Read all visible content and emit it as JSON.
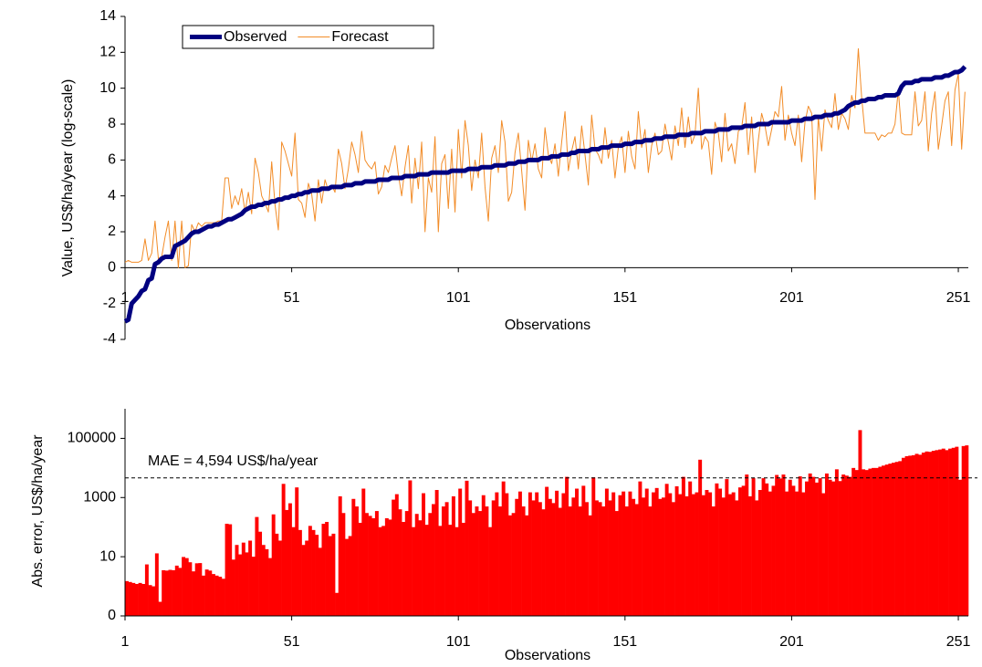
{
  "chart_data": [
    {
      "type": "line",
      "x_label": "Observations",
      "y_label": "Value, US$/ha/year (log-scale)",
      "x": [
        1,
        2,
        3,
        4,
        5,
        6,
        7,
        8,
        9,
        10,
        11,
        12,
        13,
        14,
        15,
        16,
        17,
        18,
        19,
        20,
        21,
        22,
        23,
        24,
        25,
        26,
        27,
        28,
        29,
        30,
        31,
        32,
        33,
        34,
        35,
        36,
        37,
        38,
        39,
        40,
        41,
        42,
        43,
        44,
        45,
        46,
        47,
        48,
        49,
        50,
        51,
        52,
        53,
        54,
        55,
        56,
        57,
        58,
        59,
        60,
        61,
        62,
        63,
        64,
        65,
        66,
        67,
        68,
        69,
        70,
        71,
        72,
        73,
        74,
        75,
        76,
        77,
        78,
        79,
        80,
        81,
        82,
        83,
        84,
        85,
        86,
        87,
        88,
        89,
        90,
        91,
        92,
        93,
        94,
        95,
        96,
        97,
        98,
        99,
        100,
        101,
        102,
        103,
        104,
        105,
        106,
        107,
        108,
        109,
        110,
        111,
        112,
        113,
        114,
        115,
        116,
        117,
        118,
        119,
        120,
        121,
        122,
        123,
        124,
        125,
        126,
        127,
        128,
        129,
        130,
        131,
        132,
        133,
        134,
        135,
        136,
        137,
        138,
        139,
        140,
        141,
        142,
        143,
        144,
        145,
        146,
        147,
        148,
        149,
        150,
        151,
        152,
        153,
        154,
        155,
        156,
        157,
        158,
        159,
        160,
        161,
        162,
        163,
        164,
        165,
        166,
        167,
        168,
        169,
        170,
        171,
        172,
        173,
        174,
        175,
        176,
        177,
        178,
        179,
        180,
        181,
        182,
        183,
        184,
        185,
        186,
        187,
        188,
        189,
        190,
        191,
        192,
        193,
        194,
        195,
        196,
        197,
        198,
        199,
        200,
        201,
        202,
        203,
        204,
        205,
        206,
        207,
        208,
        209,
        210,
        211,
        212,
        213,
        214,
        215,
        216,
        217,
        218,
        219,
        220,
        221,
        222,
        223,
        224,
        225,
        226,
        227,
        228,
        229,
        230,
        231,
        232,
        233,
        234,
        235,
        236,
        237,
        238,
        239,
        240,
        241,
        242,
        243,
        244,
        245,
        246,
        247,
        248,
        249,
        250,
        251,
        252,
        253
      ],
      "xlim": [
        1,
        254
      ],
      "xticks": [
        1,
        51,
        101,
        151,
        201,
        251
      ],
      "ylim": [
        -4,
        14
      ],
      "yticks": [
        -4,
        -2,
        0,
        2,
        4,
        6,
        8,
        10,
        12,
        14
      ],
      "legend": "top-left",
      "series": [
        {
          "name": "Observed",
          "color": "#000080",
          "values": [
            -3,
            -2.9,
            -2,
            -1.8,
            -1.6,
            -1.3,
            -1.2,
            -0.7,
            -0.6,
            0.2,
            0.3,
            0.5,
            0.6,
            0.6,
            0.6,
            1.2,
            1.3,
            1.4,
            1.5,
            1.7,
            1.9,
            2,
            2,
            2.1,
            2.2,
            2.3,
            2.3,
            2.4,
            2.4,
            2.5,
            2.6,
            2.7,
            2.7,
            2.8,
            2.9,
            3,
            3.2,
            3.3,
            3.4,
            3.4,
            3.5,
            3.5,
            3.6,
            3.6,
            3.7,
            3.7,
            3.8,
            3.8,
            3.9,
            3.9,
            4,
            4,
            4.1,
            4.1,
            4.2,
            4.2,
            4.3,
            4.3,
            4.3,
            4.4,
            4.4,
            4.4,
            4.5,
            4.5,
            4.5,
            4.5,
            4.6,
            4.6,
            4.6,
            4.7,
            4.7,
            4.7,
            4.8,
            4.8,
            4.8,
            4.8,
            4.9,
            4.9,
            4.9,
            4.9,
            5,
            5,
            5,
            5,
            5.1,
            5.1,
            5.1,
            5.1,
            5.2,
            5.2,
            5.2,
            5.2,
            5.3,
            5.3,
            5.3,
            5.3,
            5.3,
            5.3,
            5.4,
            5.4,
            5.4,
            5.4,
            5.4,
            5.5,
            5.5,
            5.5,
            5.5,
            5.6,
            5.6,
            5.6,
            5.6,
            5.7,
            5.7,
            5.7,
            5.7,
            5.8,
            5.8,
            5.8,
            5.9,
            5.9,
            5.9,
            6,
            6,
            6,
            6,
            6.1,
            6.1,
            6.1,
            6.2,
            6.2,
            6.2,
            6.3,
            6.3,
            6.3,
            6.4,
            6.4,
            6.5,
            6.5,
            6.5,
            6.5,
            6.6,
            6.6,
            6.6,
            6.7,
            6.7,
            6.7,
            6.8,
            6.8,
            6.8,
            6.8,
            6.9,
            6.9,
            6.9,
            7,
            7,
            7,
            7.1,
            7.1,
            7.1,
            7.2,
            7.2,
            7.2,
            7.3,
            7.3,
            7.3,
            7.3,
            7.4,
            7.4,
            7.4,
            7.4,
            7.5,
            7.5,
            7.5,
            7.5,
            7.6,
            7.6,
            7.6,
            7.6,
            7.7,
            7.7,
            7.7,
            7.7,
            7.8,
            7.8,
            7.8,
            7.8,
            7.9,
            7.9,
            7.9,
            7.9,
            8,
            8,
            8,
            8,
            8.1,
            8.1,
            8.1,
            8.1,
            8.1,
            8.1,
            8.2,
            8.2,
            8.2,
            8.2,
            8.3,
            8.3,
            8.3,
            8.4,
            8.4,
            8.4,
            8.5,
            8.5,
            8.5,
            8.6,
            8.6,
            8.7,
            8.8,
            9,
            9.1,
            9.2,
            9.2,
            9.3,
            9.3,
            9.4,
            9.4,
            9.4,
            9.5,
            9.5,
            9.6,
            9.6,
            9.6,
            9.6,
            9.7,
            10.1,
            10.3,
            10.3,
            10.3,
            10.4,
            10.4,
            10.5,
            10.5,
            10.5,
            10.5,
            10.6,
            10.6,
            10.6,
            10.7,
            10.7,
            10.8,
            10.9,
            10.9,
            11,
            11.2
          ]
        },
        {
          "name": "Forecast",
          "color": "#f28c28",
          "values": [
            0.3,
            0.4,
            0.3,
            0.3,
            0.3,
            0.4,
            1.6,
            0.4,
            0.8,
            2.6,
            0.5,
            0.6,
            1.7,
            2.6,
            0.4,
            2.6,
            0,
            2.6,
            0,
            0.1,
            2.4,
            2,
            2.5,
            2.3,
            2.5,
            2.5,
            2.5,
            2.5,
            2.6,
            2.6,
            5,
            5,
            3.3,
            4,
            3.5,
            4.4,
            3.1,
            4.2,
            3,
            6.1,
            5.3,
            4,
            3.6,
            3.1,
            5.9,
            3.5,
            2.1,
            7,
            6.5,
            5.8,
            5.1,
            7.5,
            3.8,
            3.6,
            2.8,
            4.7,
            4.1,
            2.6,
            4.9,
            3.6,
            4.9,
            4.3,
            4.6,
            4.2,
            6.6,
            5.8,
            4.4,
            5.5,
            7,
            6.3,
            5.3,
            7.6,
            6,
            5.7,
            5.5,
            5.9,
            4.1,
            4.5,
            5.7,
            5.3,
            6.1,
            6.8,
            5.2,
            4,
            5.6,
            6.8,
            3.6,
            6.1,
            4.4,
            7,
            2,
            5,
            4.2,
            7.3,
            2,
            5.8,
            6.3,
            3.3,
            6.6,
            3.1,
            7.7,
            5,
            8.2,
            6.8,
            4.3,
            6,
            5,
            7.5,
            4.5,
            2.6,
            6.1,
            6.8,
            5.3,
            8.2,
            7,
            3.7,
            4.2,
            6.4,
            7.5,
            5.4,
            3.2,
            7.1,
            5.9,
            6.9,
            5.5,
            5,
            7.8,
            6.3,
            5.8,
            6.9,
            5.1,
            7,
            8.7,
            5.4,
            6.5,
            7.3,
            5.5,
            7.9,
            6.3,
            4.6,
            8.5,
            6.6,
            6.3,
            5.8,
            7.8,
            6.1,
            7.1,
            5,
            6.7,
            7.3,
            5.3,
            7.6,
            6.2,
            5.5,
            8.7,
            6.7,
            7.7,
            5.3,
            6.8,
            7.5,
            6.3,
            6.5,
            8,
            7,
            6,
            7.9,
            6.8,
            8.9,
            6.7,
            8.4,
            6.9,
            7.4,
            10,
            6.6,
            7.3,
            7,
            5.2,
            8.1,
            7.5,
            5.9,
            8.6,
            6.5,
            6.9,
            5.8,
            7.6,
            7.8,
            9.2,
            6.3,
            8.4,
            5.3,
            7.1,
            8.6,
            7.9,
            6.8,
            7.7,
            8.7,
            8.4,
            10.1,
            7.1,
            8.5,
            7.5,
            6.8,
            8.5,
            5.9,
            8.1,
            9,
            8.6,
            3.8,
            8.4,
            6.5,
            8.8,
            8.2,
            7.8,
            9.7,
            7.7,
            8.6,
            8.3,
            7.7,
            9.6,
            8.9,
            12.2,
            9.5,
            7.5,
            7.5,
            7.5,
            7.5,
            7.1,
            7.4,
            7.3,
            7.5,
            7.5,
            8,
            9.9,
            7.5,
            7.4,
            7.4,
            7.4,
            9.8,
            7.9,
            8.2,
            9.8,
            6.5,
            8.6,
            9.8,
            6.6,
            7.9,
            9.3,
            9.8,
            6.8,
            9.9,
            10.8,
            6.6,
            9.8
          ]
        }
      ]
    },
    {
      "type": "bar",
      "x_label": "Observations",
      "y_label": "Abs. error, US$/ha/year",
      "x": [
        1,
        2,
        3,
        4,
        5,
        6,
        7,
        8,
        9,
        10,
        11,
        12,
        13,
        14,
        15,
        16,
        17,
        18,
        19,
        20,
        21,
        22,
        23,
        24,
        25,
        26,
        27,
        28,
        29,
        30,
        31,
        32,
        33,
        34,
        35,
        36,
        37,
        38,
        39,
        40,
        41,
        42,
        43,
        44,
        45,
        46,
        47,
        48,
        49,
        50,
        51,
        52,
        53,
        54,
        55,
        56,
        57,
        58,
        59,
        60,
        61,
        62,
        63,
        64,
        65,
        66,
        67,
        68,
        69,
        70,
        71,
        72,
        73,
        74,
        75,
        76,
        77,
        78,
        79,
        80,
        81,
        82,
        83,
        84,
        85,
        86,
        87,
        88,
        89,
        90,
        91,
        92,
        93,
        94,
        95,
        96,
        97,
        98,
        99,
        100,
        101,
        102,
        103,
        104,
        105,
        106,
        107,
        108,
        109,
        110,
        111,
        112,
        113,
        114,
        115,
        116,
        117,
        118,
        119,
        120,
        121,
        122,
        123,
        124,
        125,
        126,
        127,
        128,
        129,
        130,
        131,
        132,
        133,
        134,
        135,
        136,
        137,
        138,
        139,
        140,
        141,
        142,
        143,
        144,
        145,
        146,
        147,
        148,
        149,
        150,
        151,
        152,
        153,
        154,
        155,
        156,
        157,
        158,
        159,
        160,
        161,
        162,
        163,
        164,
        165,
        166,
        167,
        168,
        169,
        170,
        171,
        172,
        173,
        174,
        175,
        176,
        177,
        178,
        179,
        180,
        181,
        182,
        183,
        184,
        185,
        186,
        187,
        188,
        189,
        190,
        191,
        192,
        193,
        194,
        195,
        196,
        197,
        198,
        199,
        200,
        201,
        202,
        203,
        204,
        205,
        206,
        207,
        208,
        209,
        210,
        211,
        212,
        213,
        214,
        215,
        216,
        217,
        218,
        219,
        220,
        221,
        222,
        223,
        224,
        225,
        226,
        227,
        228,
        229,
        230,
        231,
        232,
        233,
        234,
        235,
        236,
        237,
        238,
        239,
        240,
        241,
        242,
        243,
        244,
        245,
        246,
        247,
        248,
        249,
        250,
        251,
        252,
        253
      ],
      "xlim": [
        1,
        254
      ],
      "xticks": [
        1,
        51,
        101,
        151,
        201,
        251
      ],
      "log_scale": true,
      "ylim": [
        0.1,
        1000000
      ],
      "yticks": [
        {
          "value": 0.1,
          "label": "0"
        },
        10,
        1000,
        100000
      ],
      "color": "#ff0000",
      "reference_line": {
        "value": 4594,
        "label": "MAE = 4,594 US$/ha/year"
      },
      "values": [
        1.5,
        1.4,
        1.3,
        1.2,
        1.3,
        1.2,
        5.5,
        1.1,
        1,
        13,
        0.3,
        3.5,
        3.4,
        3.6,
        3.5,
        5,
        4.2,
        9.8,
        9,
        6.5,
        3.2,
        6,
        6.1,
        2.3,
        3.7,
        3.4,
        2.6,
        2.3,
        2.1,
        1.8,
        130,
        125,
        8,
        25,
        12,
        30,
        14,
        35,
        10,
        220,
        70,
        25,
        18,
        9,
        270,
        60,
        35,
        2900,
        380,
        640,
        100,
        2200,
        80,
        25,
        35,
        110,
        80,
        55,
        20,
        130,
        150,
        50,
        60,
        0.6,
        1100,
        300,
        40,
        50,
        900,
        500,
        140,
        2000,
        300,
        240,
        200,
        350,
        100,
        110,
        200,
        180,
        850,
        1300,
        400,
        150,
        350,
        3800,
        100,
        280,
        170,
        1400,
        120,
        300,
        600,
        1800,
        110,
        500,
        700,
        120,
        1100,
        100,
        2000,
        140,
        3700,
        800,
        300,
        500,
        350,
        1200,
        500,
        100,
        800,
        1500,
        500,
        3500,
        1400,
        250,
        300,
        900,
        1600,
        500,
        250,
        1500,
        800,
        1500,
        700,
        400,
        2300,
        900,
        650,
        1700,
        450,
        1400,
        5000,
        500,
        1000,
        2000,
        500,
        2500,
        700,
        250,
        4800,
        800,
        700,
        500,
        2000,
        800,
        1500,
        350,
        1200,
        1600,
        500,
        1600,
        900,
        600,
        3500,
        1000,
        2000,
        500,
        1500,
        2100,
        900,
        1000,
        2900,
        1400,
        700,
        2400,
        1300,
        5000,
        1100,
        3500,
        1300,
        1500,
        19000,
        1200,
        1800,
        1500,
        500,
        3000,
        2000,
        1000,
        4200,
        1300,
        1500,
        800,
        2200,
        2500,
        6000,
        1100,
        4500,
        800,
        1800,
        4500,
        3000,
        1600,
        2500,
        5800,
        4400,
        6000,
        1600,
        4000,
        2500,
        1600,
        5200,
        1500,
        3500,
        6500,
        5000,
        3200,
        4500,
        1400,
        6500,
        4000,
        3500,
        9000,
        3600,
        6000,
        5500,
        5000,
        10000,
        8500,
        190000,
        9000,
        8500,
        9500,
        10000,
        10000,
        11000,
        12000,
        13000,
        14000,
        15000,
        16000,
        17000,
        22000,
        25000,
        26000,
        27000,
        30000,
        28000,
        33000,
        36000,
        35000,
        38000,
        40000,
        42000,
        45000,
        40000,
        45000,
        48000,
        52000,
        4000,
        55000,
        58000
      ]
    }
  ]
}
